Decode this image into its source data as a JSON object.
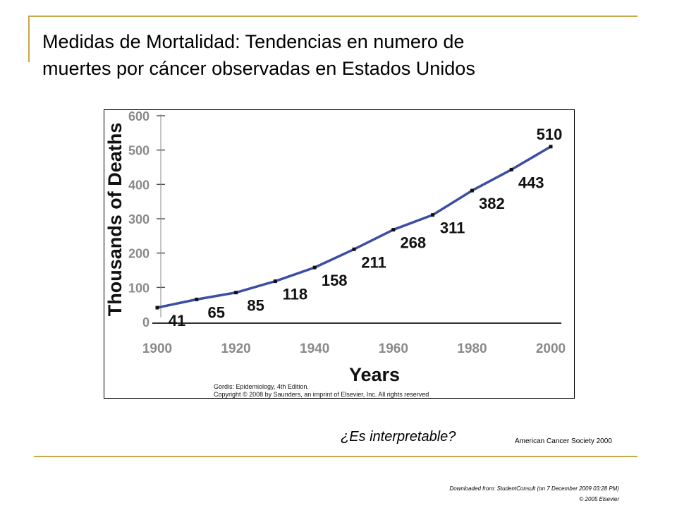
{
  "slide": {
    "title_line1": "Medidas de Mortalidad: Tendencias en numero de",
    "title_line2": "muertes por cáncer observadas en Estados Unidos",
    "question": "¿Es interpretable?",
    "source": "American Cancer Society 2000",
    "download_note": "Downloaded from: StudentConsult (on 7 December 2009 03:28 PM)",
    "copyright": "© 2005 Elsevier"
  },
  "colors": {
    "rule": "#c9a84a",
    "line": "#3b4ea3",
    "axis_text": "#8a8a8a",
    "label_text": "#111111"
  },
  "chart_data": {
    "type": "line",
    "x": [
      1900,
      1910,
      1920,
      1930,
      1940,
      1950,
      1960,
      1970,
      1980,
      1990,
      2000
    ],
    "y": [
      41,
      65,
      85,
      118,
      158,
      211,
      268,
      311,
      382,
      443,
      510
    ],
    "data_labels": [
      "41",
      "65",
      "85",
      "118",
      "158",
      "211",
      "268",
      "311",
      "382",
      "443",
      "510"
    ],
    "xlabel": "Years",
    "ylabel": "Thousands of Deaths",
    "xlim": [
      1900,
      2000
    ],
    "ylim": [
      0,
      600
    ],
    "x_ticks": [
      "1900",
      "1920",
      "1940",
      "1960",
      "1980",
      "2000"
    ],
    "y_ticks": [
      "0",
      "100",
      "200",
      "300",
      "400",
      "500",
      "600"
    ],
    "grid": false,
    "credit_line1": "Gordis: Epidemiology, 4th Edition.",
    "credit_line2": "Copyright © 2008 by Saunders, an imprint of Elsevier, Inc. All rights reserved"
  }
}
